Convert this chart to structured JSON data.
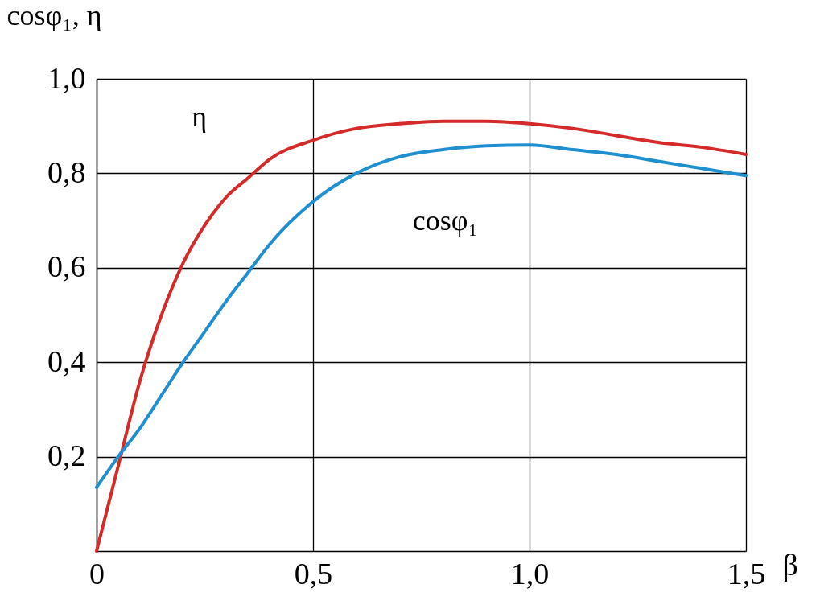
{
  "chart_data": {
    "type": "line",
    "xlabel": "β",
    "ylabel": "cosφ₁, η",
    "x": [
      0,
      0.05,
      0.1,
      0.15,
      0.2,
      0.25,
      0.3,
      0.35,
      0.4,
      0.5,
      0.6,
      0.7,
      0.8,
      0.9,
      1.0,
      1.1,
      1.2,
      1.3,
      1.4,
      1.5
    ],
    "series": [
      {
        "name": "η",
        "color": "#d42a2a",
        "values": [
          0.0,
          0.18,
          0.36,
          0.5,
          0.61,
          0.69,
          0.75,
          0.79,
          0.83,
          0.87,
          0.895,
          0.905,
          0.91,
          0.91,
          0.905,
          0.895,
          0.88,
          0.865,
          0.855,
          0.84
        ]
      },
      {
        "name": "cosφ₁",
        "color": "#1f8fd0",
        "values": [
          0.135,
          0.2,
          0.26,
          0.33,
          0.4,
          0.465,
          0.53,
          0.59,
          0.65,
          0.74,
          0.8,
          0.835,
          0.85,
          0.858,
          0.86,
          0.85,
          0.84,
          0.825,
          0.81,
          0.795
        ]
      }
    ],
    "xlim": [
      0,
      1.5
    ],
    "ylim": [
      0,
      1.0
    ],
    "xticks": [
      0,
      {
        "value": 0.5,
        "label": "0,5"
      },
      {
        "value": 1.0,
        "label": "1,0"
      },
      {
        "value": 1.5,
        "label": "1,5"
      }
    ],
    "yticks": [
      {
        "value": 0.2,
        "label": "0,2"
      },
      {
        "value": 0.4,
        "label": "0,4"
      },
      {
        "value": 0.6,
        "label": "0,6"
      },
      {
        "value": 0.8,
        "label": "0,8"
      },
      {
        "value": 1.0,
        "label": "1,0"
      }
    ],
    "grid": true,
    "marker": "none",
    "line_style": "solid"
  }
}
